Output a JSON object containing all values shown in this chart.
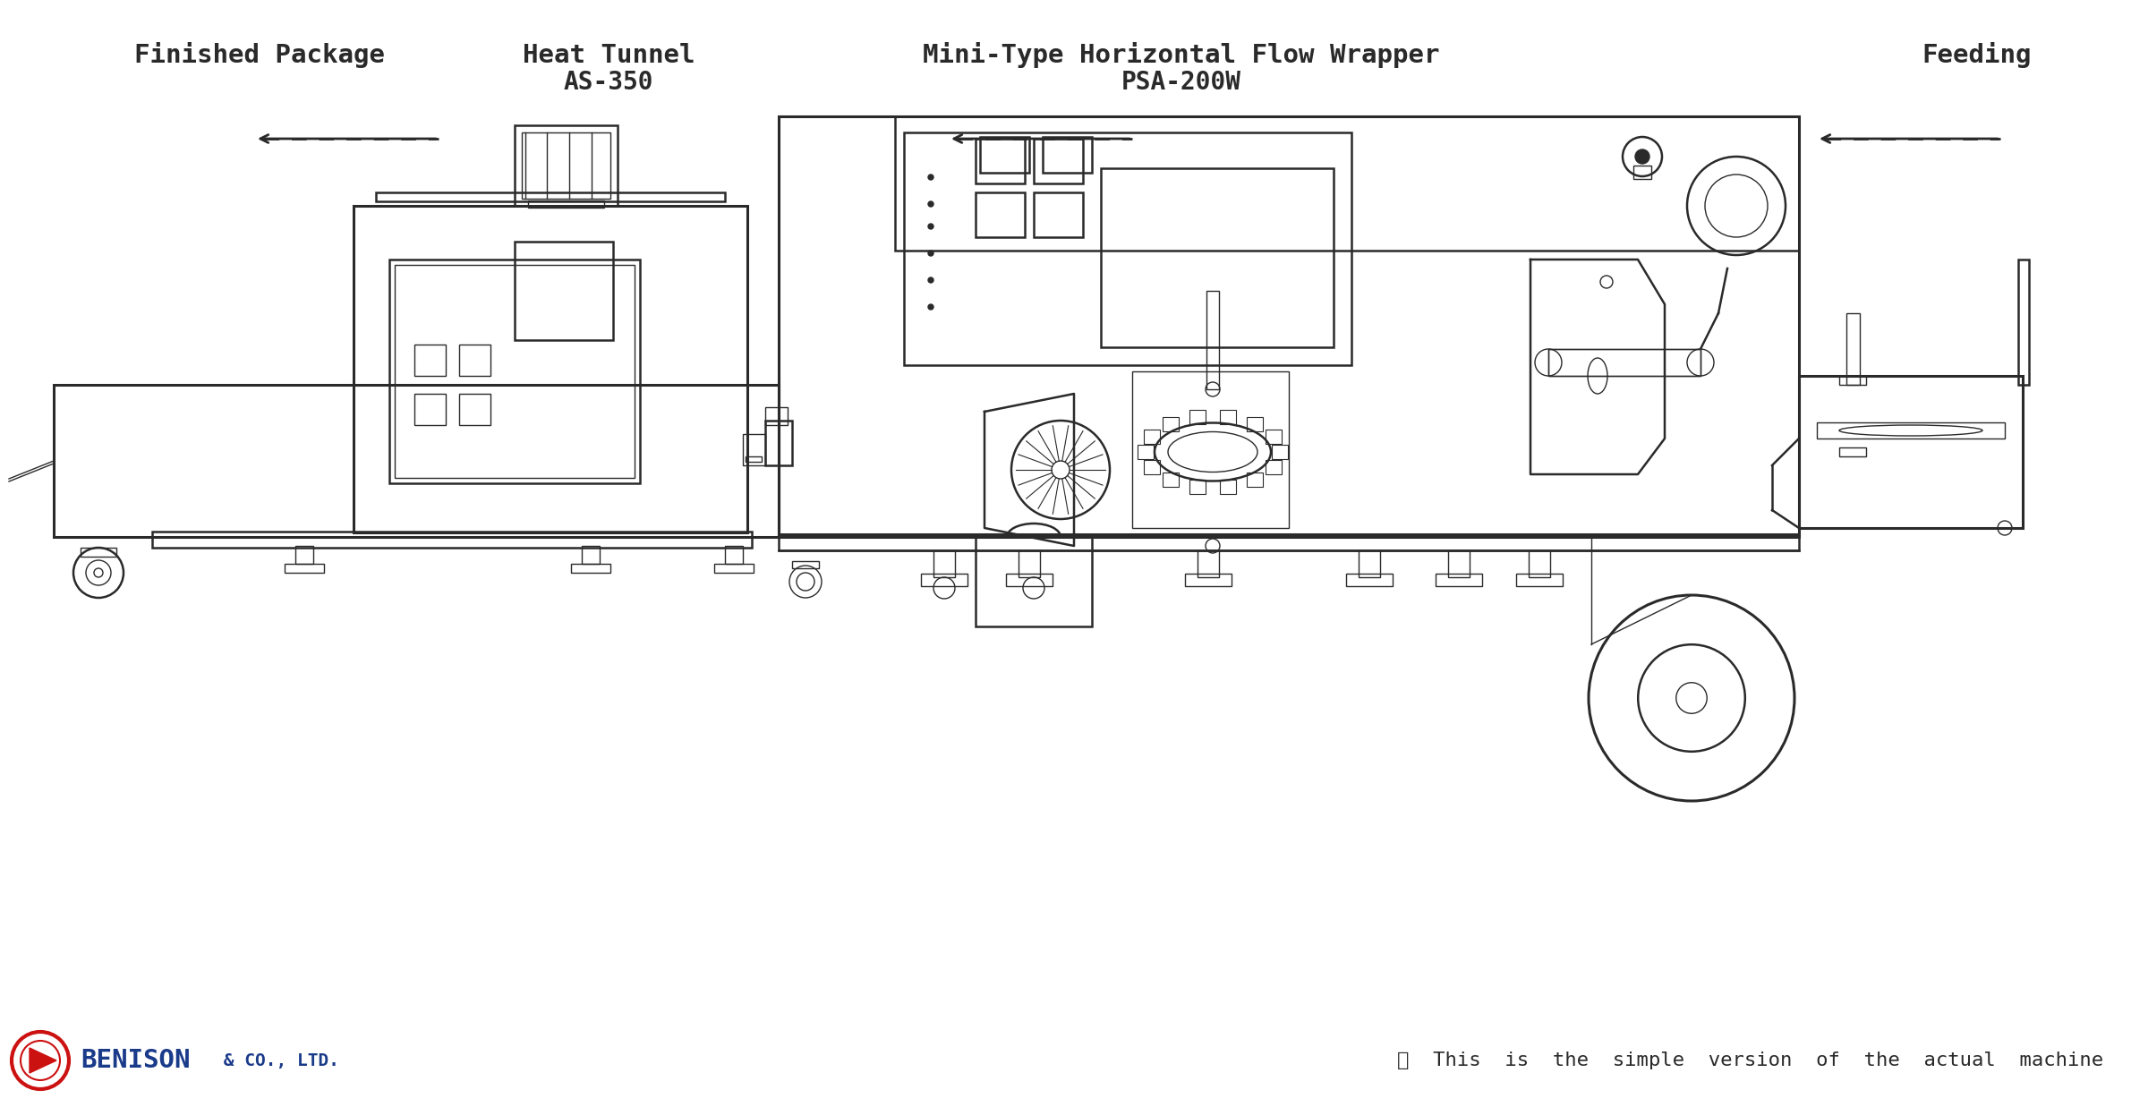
{
  "bg_color": "#ffffff",
  "line_color": "#2a2a2a",
  "lw_main": 1.8,
  "lw_thin": 1.0,
  "lw_thick": 2.2,
  "title_font": "DejaVu Sans Mono",
  "labels": {
    "finished_package": "Finished Package",
    "heat_tunnel": "Heat Tunnel",
    "heat_tunnel_model": "AS-350",
    "wrapper": "Mini-Type Horizontal Flow Wrapper",
    "wrapper_model": "PSA-200W",
    "feeding": "Feeding",
    "disclaimer": "※  This  is  the  simple  version  of  the  actual  machine",
    "brand": "BENISON",
    "brand_suffix": " & CO., LTD."
  },
  "brand_color": "#cc1111",
  "brand_blue": "#1a3a8a"
}
